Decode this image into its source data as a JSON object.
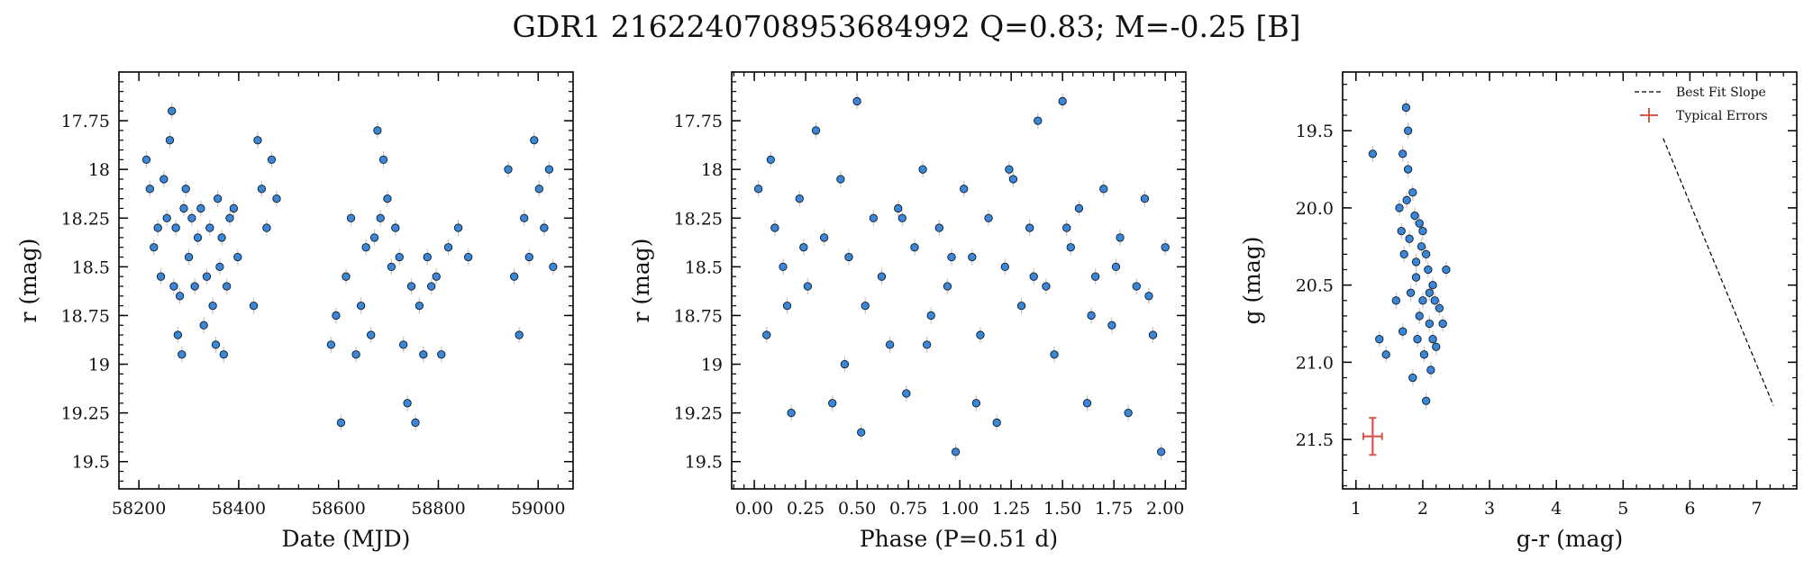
{
  "figure": {
    "title": "GDR1 2162240708953684992  Q=0.83; M=-0.25 [B]"
  },
  "colors": {
    "point_fill": "#3b86d6",
    "point_edge": "#0d1b2a",
    "errorbar": "#c7c7c7",
    "typical_error": "#d9534f",
    "slope_line": "#000000"
  },
  "chart_data": [
    {
      "type": "scatter",
      "xlabel": "Date (MJD)",
      "ylabel": "r (mag)",
      "xlim": [
        58160,
        59070
      ],
      "ylim": [
        19.64,
        17.5
      ],
      "y_inverted": true,
      "xticks": [
        58200,
        58400,
        58600,
        58800,
        59000
      ],
      "yticks": [
        17.75,
        18.0,
        18.25,
        18.5,
        18.75,
        19.0,
        19.25,
        19.5
      ],
      "series": [
        {
          "x": [
            58215,
            58222,
            58230,
            58238,
            58244,
            58250,
            58256,
            58262,
            58266,
            58270,
            58274,
            58278,
            58282,
            58286,
            58290,
            58294,
            58300,
            58306,
            58312,
            58318,
            58324,
            58330,
            58336,
            58342,
            58348,
            58354,
            58358,
            58362,
            58366,
            58370,
            58376,
            58382,
            58390,
            58398,
            58430,
            58438,
            58446,
            58456,
            58466,
            58476,
            58585,
            58595,
            58605,
            58615,
            58625,
            58635,
            58645,
            58655,
            58665,
            58672,
            58678,
            58684,
            58690,
            58698,
            58706,
            58714,
            58722,
            58730,
            58738,
            58746,
            58754,
            58762,
            58770,
            58778,
            58786,
            58796,
            58806,
            58820,
            58840,
            58860,
            58940,
            58952,
            58962,
            58972,
            58982,
            58992,
            59002,
            59012,
            59022,
            59030
          ],
          "y": [
            17.95,
            18.1,
            18.4,
            18.3,
            18.55,
            18.05,
            18.25,
            17.85,
            17.7,
            18.6,
            18.3,
            18.85,
            18.65,
            18.95,
            18.2,
            18.1,
            18.45,
            18.25,
            18.6,
            18.35,
            18.2,
            18.8,
            18.55,
            18.3,
            18.7,
            18.9,
            18.15,
            18.5,
            18.35,
            18.95,
            18.6,
            18.25,
            18.2,
            18.45,
            18.7,
            17.85,
            18.1,
            18.3,
            17.95,
            18.15,
            18.9,
            18.75,
            19.3,
            18.55,
            18.25,
            18.95,
            18.7,
            18.4,
            18.85,
            18.35,
            17.8,
            18.25,
            17.95,
            18.15,
            18.5,
            18.3,
            18.45,
            18.9,
            19.2,
            18.6,
            19.3,
            18.7,
            18.95,
            18.45,
            18.6,
            18.55,
            18.95,
            18.4,
            18.3,
            18.45,
            18.0,
            18.55,
            18.85,
            18.25,
            18.45,
            17.85,
            18.1,
            18.3,
            18.0,
            18.5
          ]
        }
      ]
    },
    {
      "type": "scatter",
      "xlabel": "Phase (P=0.51 d)",
      "ylabel": "r (mag)",
      "xlim": [
        -0.11,
        2.1
      ],
      "ylim": [
        19.64,
        17.5
      ],
      "y_inverted": true,
      "xticks": [
        0.0,
        0.25,
        0.5,
        0.75,
        1.0,
        1.25,
        1.5,
        1.75,
        2.0
      ],
      "xtick_labels": [
        "0.00",
        "0.25",
        "0.50",
        "0.75",
        "1.00",
        "1.25",
        "1.50",
        "1.75",
        "2.00"
      ],
      "yticks": [
        17.75,
        18.0,
        18.25,
        18.5,
        18.75,
        19.0,
        19.25,
        19.5
      ],
      "series": [
        {
          "x": [
            0.02,
            0.06,
            0.1,
            0.14,
            0.18,
            0.22,
            0.26,
            0.3,
            0.34,
            0.38,
            0.42,
            0.46,
            0.5,
            0.54,
            0.58,
            0.62,
            0.66,
            0.7,
            0.74,
            0.78,
            0.82,
            0.86,
            0.9,
            0.94,
            0.98,
            1.02,
            1.06,
            1.1,
            1.14,
            1.18,
            1.22,
            1.26,
            1.3,
            1.34,
            1.38,
            1.42,
            1.46,
            1.5,
            1.54,
            1.58,
            1.62,
            1.66,
            1.7,
            1.74,
            1.78,
            1.82,
            1.86,
            1.9,
            1.94,
            1.98,
            0.08,
            0.16,
            0.24,
            0.44,
            0.52,
            0.72,
            0.84,
            0.96,
            1.08,
            1.24,
            1.36,
            1.52,
            1.64,
            1.76,
            1.92,
            2.0
          ],
          "y": [
            18.1,
            18.85,
            18.3,
            18.5,
            19.25,
            18.15,
            18.6,
            17.8,
            18.35,
            19.2,
            18.05,
            18.45,
            17.65,
            18.7,
            18.25,
            18.55,
            18.9,
            18.2,
            19.15,
            18.4,
            18.0,
            18.75,
            18.3,
            18.6,
            19.45,
            18.1,
            18.45,
            18.85,
            18.25,
            19.3,
            18.5,
            18.05,
            18.7,
            18.3,
            17.75,
            18.6,
            18.95,
            17.65,
            18.4,
            18.2,
            19.2,
            18.55,
            18.1,
            18.8,
            18.35,
            19.25,
            18.6,
            18.15,
            18.85,
            19.45,
            17.95,
            18.7,
            18.4,
            19.0,
            19.35,
            18.25,
            18.9,
            18.45,
            19.2,
            18.0,
            18.55,
            18.3,
            18.75,
            18.5,
            18.65,
            18.4
          ]
        }
      ]
    },
    {
      "type": "scatter",
      "xlabel": "g-r (mag)",
      "ylabel": "g (mag)",
      "xlim": [
        0.8,
        7.6
      ],
      "ylim": [
        21.82,
        19.12
      ],
      "y_inverted": true,
      "xticks": [
        1,
        2,
        3,
        4,
        5,
        6,
        7
      ],
      "yticks": [
        19.5,
        20.0,
        20.5,
        21.0,
        21.5
      ],
      "yticks_labels": [
        "19.5",
        "20.0",
        "20.5",
        "21.0",
        "21.5"
      ],
      "series": [
        {
          "x": [
            1.65,
            1.7,
            1.75,
            1.8,
            1.85,
            1.9,
            1.95,
            2.0,
            2.05,
            2.1,
            2.15,
            2.2,
            2.25,
            2.3,
            1.72,
            1.78,
            1.82,
            1.88,
            1.92,
            1.98,
            2.02,
            2.08,
            2.12,
            2.18,
            1.7,
            1.85,
            1.95,
            2.05,
            2.15,
            2.35,
            1.6,
            1.45,
            1.25,
            1.35,
            1.78,
            1.9,
            2.0,
            2.1,
            1.68,
            1.76
          ],
          "y": [
            20.0,
            19.65,
            19.35,
            20.2,
            19.9,
            20.45,
            20.1,
            20.6,
            20.3,
            20.75,
            20.5,
            20.9,
            20.65,
            20.75,
            20.3,
            19.75,
            20.55,
            20.05,
            20.85,
            20.25,
            20.95,
            20.4,
            21.05,
            20.6,
            20.8,
            21.1,
            20.7,
            21.25,
            20.85,
            20.4,
            20.6,
            20.95,
            19.65,
            20.85,
            19.5,
            20.35,
            20.15,
            20.55,
            20.15,
            19.95
          ]
        }
      ],
      "typical_error": {
        "x": 1.25,
        "y": 21.48,
        "xerr": 0.14,
        "yerr": 0.12
      },
      "slope_line": {
        "x": [
          5.6,
          7.25
        ],
        "y": [
          19.55,
          21.28
        ]
      },
      "legend": {
        "placement": "top-right",
        "entries": [
          "Best Fit Slope",
          "Typical Errors"
        ]
      }
    }
  ]
}
